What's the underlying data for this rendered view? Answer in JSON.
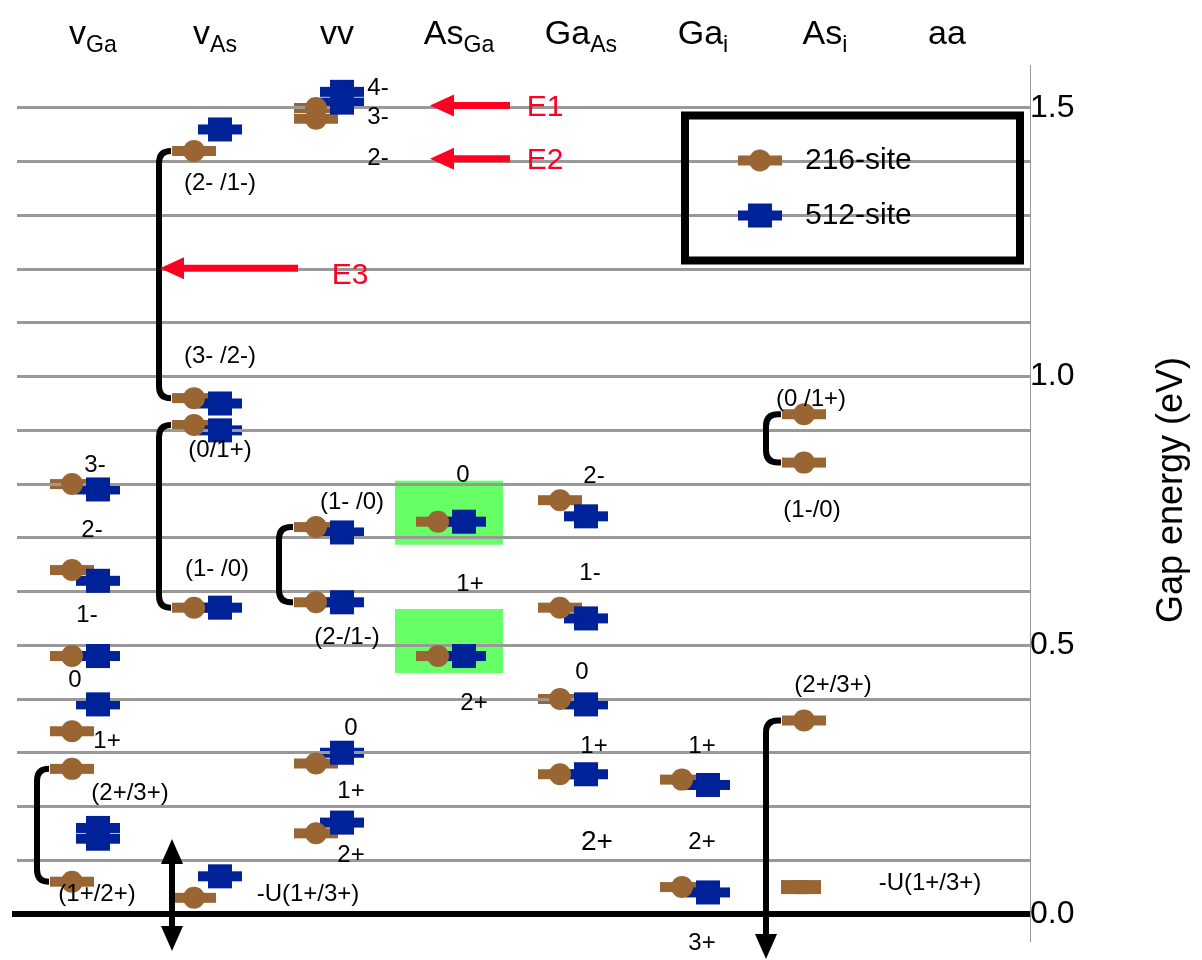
{
  "chart_data": {
    "type": "scatter",
    "categories": [
      "v$_{Ga}$",
      "v$_{As}$",
      "vv",
      "As$_{Ga}$",
      "Ga$_{As}$",
      "Ga$_{i}$",
      "As$_{i}$",
      "aa"
    ],
    "ylabel": "Gap energy (eV)",
    "ylim": [
      -0.05,
      1.58
    ],
    "yticks": [
      {
        "value": 0,
        "label": "0.0"
      },
      {
        "value": 0.1,
        "label": null
      },
      {
        "value": 0.2,
        "label": null
      },
      {
        "value": 0.3,
        "label": null
      },
      {
        "value": 0.4,
        "label": null
      },
      {
        "value": 0.5,
        "label": "0.5"
      },
      {
        "value": 0.6,
        "label": null
      },
      {
        "value": 0.7,
        "label": null
      },
      {
        "value": 0.8,
        "label": null
      },
      {
        "value": 0.9,
        "label": null
      },
      {
        "value": 1,
        "label": "1.0"
      },
      {
        "value": 1.1,
        "label": null
      },
      {
        "value": 1.2,
        "label": null
      },
      {
        "value": 1.3,
        "label": null
      },
      {
        "value": 1.4,
        "label": null
      },
      {
        "value": 1.5,
        "label": "1.5"
      }
    ],
    "grid": "y",
    "legend": "top right",
    "tick_labels": "y",
    "ref_lines": [
      {
        "axis": "y",
        "value": 0,
        "color": "#000000"
      }
    ],
    "series": [
      {
        "name": "216-site",
        "color": "#996633",
        "marker": "circle",
        "x": [
          "v$_{Ga}$",
          "v$_{Ga}$",
          "v$_{Ga}$",
          "v$_{Ga}$",
          "v$_{Ga}$",
          "v$_{Ga}$",
          "v$_{As}$",
          "v$_{As}$",
          "v$_{As}$",
          "v$_{As}$",
          "v$_{As}$",
          "vv",
          "vv",
          "vv",
          "vv",
          "vv",
          "vv",
          "As$_{Ga}$",
          "As$_{Ga}$",
          "Ga$_{As}$",
          "Ga$_{As}$",
          "Ga$_{As}$",
          "Ga$_{As}$",
          "Ga$_{i}$",
          "Ga$_{i}$",
          "As$_{i}$",
          "As$_{i}$",
          "As$_{i}$"
        ],
        "values": [
          0.8,
          0.64,
          0.48,
          0.34,
          0.27,
          0.06,
          1.42,
          0.96,
          0.91,
          0.57,
          0.03,
          1.5,
          1.48,
          0.72,
          0.58,
          0.28,
          0.15,
          0.73,
          0.48,
          0.77,
          0.57,
          0.4,
          0.26,
          0.25,
          0.05,
          0.93,
          0.84,
          0.36
        ]
      },
      {
        "name": "512-site",
        "color": "#002299",
        "marker": "square",
        "x": [
          "v$_{Ga}$",
          "v$_{Ga}$",
          "v$_{Ga}$",
          "v$_{Ga}$",
          "v$_{Ga}$",
          "v$_{Ga}$",
          "v$_{As}$",
          "v$_{As}$",
          "v$_{As}$",
          "v$_{As}$",
          "v$_{As}$",
          "vv",
          "vv",
          "vv",
          "vv",
          "vv",
          "vv",
          "As$_{Ga}$",
          "As$_{Ga}$",
          "Ga$_{As}$",
          "Ga$_{As}$",
          "Ga$_{As}$",
          "Ga$_{As}$",
          "Ga$_{i}$",
          "Ga$_{i}$"
        ],
        "values": [
          0.79,
          0.62,
          0.48,
          0.39,
          0.16,
          0.14,
          1.46,
          0.95,
          0.9,
          0.57,
          0.07,
          1.53,
          1.51,
          0.71,
          0.58,
          0.3,
          0.17,
          0.73,
          0.48,
          0.74,
          0.55,
          0.39,
          0.26,
          0.24,
          0.04
        ]
      },
      {
        "color": "#996633",
        "x": [
          "As$_{i}$"
        ],
        "values": [
          0.05
        ]
      }
    ],
    "annotations": [
      "E1",
      "E2",
      "E3",
      "4-",
      "3-",
      "2-",
      "(2- /1-)",
      "(3- /2-)",
      "(0/1+)",
      "(1- /0)",
      "3-",
      "2-",
      "1-",
      "0",
      "1+",
      "(2+/3+)",
      "(1+/2+)",
      "-U(1+/3+)",
      "(1- /0)",
      "(2-/1-)",
      "0",
      "1+",
      "2+",
      "0",
      "1+",
      "2+",
      "2-",
      "1-",
      "0",
      "1+",
      "2+",
      "1+",
      "2+",
      "3+",
      "(0 /1+)",
      "(1-/0)",
      "(2+/3+)",
      "-U(1+/3+)"
    ]
  }
}
